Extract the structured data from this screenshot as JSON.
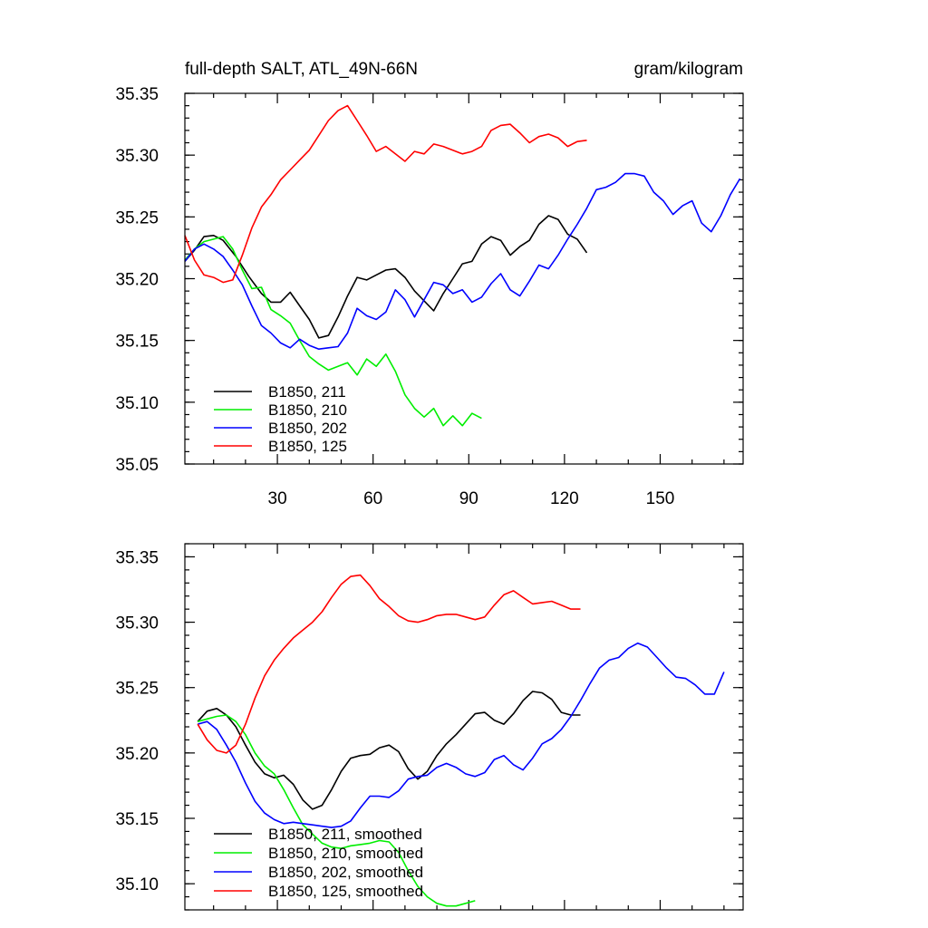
{
  "figure": {
    "title_left": "full-depth SALT, ATL_49N-66N",
    "title_right": "gram/kilogram"
  },
  "chart_data": [
    {
      "type": "line",
      "name": "raw",
      "xlim": [
        1,
        176
      ],
      "ylim": [
        35.05,
        35.35
      ],
      "x_ticks": [
        30,
        60,
        90,
        120,
        150
      ],
      "x_tick_labels": [
        "30",
        "60",
        "90",
        "120",
        "150"
      ],
      "y_ticks": [
        35.05,
        35.1,
        35.15,
        35.2,
        35.25,
        35.3,
        35.35
      ],
      "y_tick_labels": [
        "35.05",
        "35.10",
        "35.15",
        "35.20",
        "35.25",
        "35.30",
        "35.35"
      ],
      "series": [
        {
          "name": "B1850, 211",
          "color": "#000000",
          "x": [
            1,
            4,
            7,
            10,
            13,
            17,
            21,
            25,
            28,
            31,
            34,
            37,
            40,
            43,
            46,
            49,
            52,
            55,
            58,
            61,
            64,
            67,
            70,
            73,
            76,
            79,
            82,
            85,
            88,
            91,
            94,
            97,
            100,
            103,
            106,
            109,
            112,
            115,
            118,
            121,
            124,
            127
          ],
          "y": [
            35.214,
            35.223,
            35.234,
            35.235,
            35.231,
            35.218,
            35.202,
            35.188,
            35.181,
            35.181,
            35.189,
            35.178,
            35.167,
            35.152,
            35.154,
            35.169,
            35.186,
            35.201,
            35.199,
            35.203,
            35.207,
            35.208,
            35.201,
            35.19,
            35.182,
            35.174,
            35.188,
            35.2,
            35.212,
            35.214,
            35.228,
            35.234,
            35.231,
            35.219,
            35.226,
            35.231,
            35.244,
            35.251,
            35.248,
            35.236,
            35.232,
            35.221
          ]
        },
        {
          "name": "B1850, 210",
          "color": "#00ee00",
          "x": [
            1,
            4,
            7,
            10,
            13,
            16,
            19,
            22,
            25,
            28,
            31,
            34,
            37,
            40,
            43,
            46,
            49,
            52,
            55,
            58,
            61,
            64,
            67,
            70,
            73,
            76,
            79,
            82,
            85,
            88,
            91,
            94
          ],
          "y": [
            35.215,
            35.224,
            35.23,
            35.232,
            35.234,
            35.224,
            35.207,
            35.192,
            35.193,
            35.175,
            35.17,
            35.164,
            35.15,
            35.137,
            35.131,
            35.126,
            35.129,
            35.132,
            35.122,
            35.135,
            35.129,
            35.139,
            35.125,
            35.106,
            35.095,
            35.088,
            35.095,
            35.081,
            35.089,
            35.081,
            35.091,
            35.087
          ]
        },
        {
          "name": "B1850, 202",
          "color": "#0000ff",
          "x": [
            1,
            4,
            7,
            10,
            13,
            16,
            19,
            22,
            25,
            28,
            31,
            34,
            37,
            40,
            43,
            46,
            49,
            52,
            55,
            58,
            61,
            64,
            67,
            70,
            73,
            76,
            79,
            82,
            85,
            88,
            91,
            94,
            97,
            100,
            103,
            106,
            109,
            112,
            115,
            118,
            121,
            124,
            127,
            130,
            133,
            136,
            139,
            142,
            145,
            148,
            151,
            154,
            157,
            160,
            163,
            166,
            169,
            172,
            175
          ],
          "y": [
            35.214,
            35.224,
            35.228,
            35.224,
            35.218,
            35.207,
            35.195,
            35.178,
            35.162,
            35.156,
            35.148,
            35.144,
            35.151,
            35.146,
            35.143,
            35.144,
            35.145,
            35.156,
            35.176,
            35.17,
            35.167,
            35.173,
            35.191,
            35.183,
            35.169,
            35.183,
            35.197,
            35.195,
            35.188,
            35.191,
            35.181,
            35.185,
            35.196,
            35.204,
            35.191,
            35.186,
            35.198,
            35.211,
            35.208,
            35.219,
            35.232,
            35.244,
            35.257,
            35.272,
            35.274,
            35.278,
            35.285,
            35.285,
            35.283,
            35.27,
            35.263,
            35.252,
            35.259,
            35.263,
            35.245,
            35.238,
            35.251,
            35.268,
            35.281
          ]
        },
        {
          "name": "B1850, 125",
          "color": "#ff0000",
          "x": [
            1,
            4,
            7,
            10,
            13,
            16,
            19,
            22,
            25,
            28,
            31,
            34,
            37,
            40,
            43,
            46,
            49,
            52,
            55,
            58,
            61,
            64,
            67,
            70,
            73,
            76,
            79,
            82,
            85,
            88,
            91,
            94,
            97,
            100,
            103,
            106,
            109,
            112,
            115,
            118,
            121,
            124,
            127
          ],
          "y": [
            35.235,
            35.215,
            35.203,
            35.201,
            35.197,
            35.199,
            35.219,
            35.241,
            35.258,
            35.268,
            35.28,
            35.288,
            35.296,
            35.304,
            35.316,
            35.328,
            35.336,
            35.34,
            35.328,
            35.316,
            35.303,
            35.307,
            35.301,
            35.295,
            35.303,
            35.301,
            35.309,
            35.307,
            35.304,
            35.301,
            35.303,
            35.307,
            35.32,
            35.324,
            35.325,
            35.318,
            35.31,
            35.315,
            35.317,
            35.314,
            35.307,
            35.311,
            35.312
          ]
        }
      ]
    },
    {
      "type": "line",
      "name": "smoothed",
      "xlim": [
        1,
        176
      ],
      "ylim": [
        35.08,
        35.36
      ],
      "x_ticks": [
        30,
        60,
        90,
        120,
        150
      ],
      "y_ticks": [
        35.1,
        35.15,
        35.2,
        35.25,
        35.3,
        35.35
      ],
      "y_tick_labels": [
        "35.10",
        "35.15",
        "35.20",
        "35.25",
        "35.30",
        "35.35"
      ],
      "series": [
        {
          "name": "B1850, 211, smoothed",
          "color": "#000000",
          "x": [
            5,
            8,
            11,
            14,
            17,
            20,
            23,
            26,
            29,
            32,
            35,
            38,
            41,
            44,
            47,
            50,
            53,
            56,
            59,
            62,
            65,
            68,
            71,
            74,
            77,
            80,
            83,
            86,
            89,
            92,
            95,
            98,
            101,
            104,
            107,
            110,
            113,
            116,
            119,
            122,
            125
          ],
          "y": [
            35.224,
            35.232,
            35.234,
            35.229,
            35.22,
            35.206,
            35.193,
            35.184,
            35.181,
            35.183,
            35.176,
            35.164,
            35.157,
            35.16,
            35.172,
            35.186,
            35.196,
            35.198,
            35.199,
            35.204,
            35.206,
            35.201,
            35.188,
            35.18,
            35.186,
            35.198,
            35.207,
            35.214,
            35.222,
            35.23,
            35.231,
            35.225,
            35.222,
            35.23,
            35.24,
            35.247,
            35.246,
            35.241,
            35.231,
            35.229,
            35.229
          ]
        },
        {
          "name": "B1850, 210, smoothed",
          "color": "#00ee00",
          "x": [
            5,
            8,
            11,
            14,
            17,
            20,
            23,
            26,
            29,
            32,
            35,
            38,
            41,
            44,
            47,
            50,
            53,
            56,
            59,
            62,
            65,
            68,
            71,
            74,
            77,
            80,
            83,
            86,
            89,
            92
          ],
          "y": [
            35.224,
            35.226,
            35.228,
            35.229,
            35.224,
            35.214,
            35.2,
            35.19,
            35.184,
            35.172,
            35.158,
            35.145,
            35.138,
            35.131,
            35.128,
            35.127,
            35.129,
            35.13,
            35.131,
            35.133,
            35.132,
            35.124,
            35.11,
            35.098,
            35.09,
            35.085,
            35.083,
            35.083,
            35.085,
            35.087
          ]
        },
        {
          "name": "B1850, 202, smoothed",
          "color": "#0000ff",
          "x": [
            5,
            8,
            11,
            14,
            17,
            20,
            23,
            26,
            29,
            32,
            35,
            38,
            41,
            44,
            47,
            50,
            53,
            56,
            59,
            62,
            65,
            68,
            71,
            74,
            77,
            80,
            83,
            86,
            89,
            92,
            95,
            98,
            101,
            104,
            107,
            110,
            113,
            116,
            119,
            122,
            125,
            128,
            131,
            134,
            137,
            140,
            143,
            146,
            149,
            152,
            155,
            158,
            161,
            164,
            167,
            170
          ],
          "y": [
            35.222,
            35.224,
            35.218,
            35.206,
            35.193,
            35.177,
            35.163,
            35.154,
            35.149,
            35.146,
            35.147,
            35.146,
            35.145,
            35.144,
            35.143,
            35.144,
            35.148,
            35.158,
            35.167,
            35.167,
            35.166,
            35.171,
            35.18,
            35.182,
            35.183,
            35.189,
            35.192,
            35.189,
            35.184,
            35.182,
            35.185,
            35.195,
            35.198,
            35.191,
            35.187,
            35.196,
            35.207,
            35.211,
            35.218,
            35.228,
            35.24,
            35.253,
            35.265,
            35.271,
            35.273,
            35.28,
            35.284,
            35.281,
            35.273,
            35.265,
            35.258,
            35.257,
            35.252,
            35.245,
            35.245,
            35.262
          ]
        },
        {
          "name": "B1850, 125, smoothed",
          "color": "#ff0000",
          "x": [
            5,
            8,
            11,
            14,
            17,
            20,
            23,
            26,
            29,
            32,
            35,
            38,
            41,
            44,
            47,
            50,
            53,
            56,
            59,
            62,
            65,
            68,
            71,
            74,
            77,
            80,
            83,
            86,
            89,
            92,
            95,
            98,
            101,
            104,
            107,
            110,
            113,
            116,
            119,
            122,
            125
          ],
          "y": [
            35.222,
            35.21,
            35.202,
            35.2,
            35.206,
            35.222,
            35.242,
            35.259,
            35.271,
            35.28,
            35.288,
            35.294,
            35.3,
            35.308,
            35.319,
            35.329,
            35.335,
            35.336,
            35.328,
            35.318,
            35.312,
            35.305,
            35.301,
            35.3,
            35.302,
            35.305,
            35.306,
            35.306,
            35.304,
            35.302,
            35.304,
            35.313,
            35.321,
            35.324,
            35.319,
            35.314,
            35.315,
            35.316,
            35.313,
            35.31,
            35.31
          ]
        }
      ]
    }
  ]
}
